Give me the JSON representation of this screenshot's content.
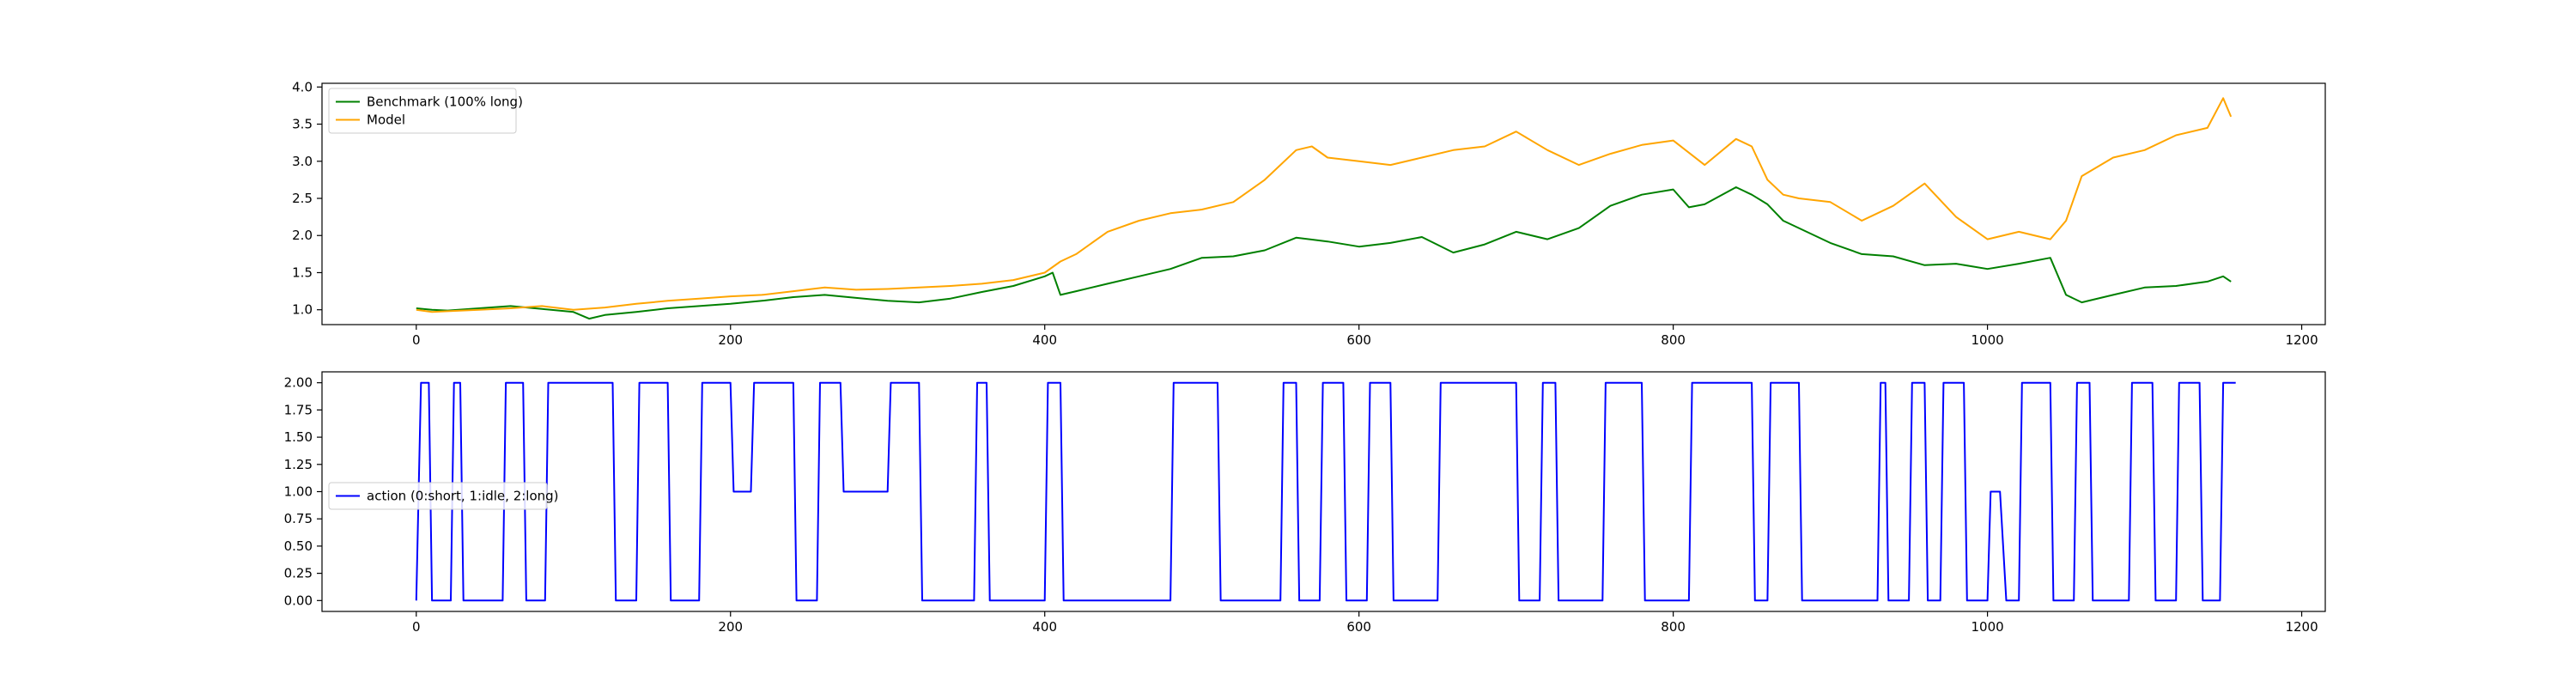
{
  "chart_data": [
    {
      "type": "line",
      "title": "",
      "xlabel": "",
      "ylabel": "",
      "xlim": [
        -60,
        1215
      ],
      "ylim": [
        0.8,
        4.05
      ],
      "xticks": [
        0,
        200,
        400,
        600,
        800,
        1000,
        1200
      ],
      "yticks": [
        1.0,
        1.5,
        2.0,
        2.5,
        3.0,
        3.5,
        4.0
      ],
      "x_tick_labels": [
        "0",
        "200",
        "400",
        "600",
        "800",
        "1000",
        "1200"
      ],
      "y_tick_labels": [
        "1.0",
        "1.5",
        "2.0",
        "2.5",
        "3.0",
        "3.5",
        "4.0"
      ],
      "grid": false,
      "legend_position": "upper-left",
      "series": [
        {
          "name": "Benchmark (100% long)",
          "color": "#008000",
          "x": [
            0,
            10,
            20,
            40,
            60,
            80,
            100,
            110,
            120,
            140,
            160,
            180,
            200,
            220,
            240,
            260,
            280,
            300,
            320,
            340,
            360,
            380,
            400,
            405,
            410,
            420,
            440,
            460,
            480,
            500,
            520,
            540,
            560,
            580,
            600,
            620,
            640,
            660,
            680,
            700,
            720,
            740,
            760,
            780,
            800,
            810,
            820,
            840,
            850,
            860,
            870,
            880,
            900,
            920,
            940,
            960,
            980,
            1000,
            1020,
            1040,
            1050,
            1060,
            1080,
            1100,
            1120,
            1140,
            1150,
            1155
          ],
          "y": [
            1.02,
            1.0,
            0.99,
            1.02,
            1.05,
            1.01,
            0.97,
            0.88,
            0.93,
            0.97,
            1.02,
            1.05,
            1.08,
            1.12,
            1.17,
            1.2,
            1.16,
            1.12,
            1.1,
            1.15,
            1.24,
            1.32,
            1.45,
            1.5,
            1.2,
            1.25,
            1.35,
            1.45,
            1.55,
            1.7,
            1.72,
            1.8,
            1.97,
            1.92,
            1.85,
            1.9,
            1.98,
            1.77,
            1.88,
            2.05,
            1.95,
            2.1,
            2.4,
            2.55,
            2.62,
            2.38,
            2.42,
            2.65,
            2.55,
            2.42,
            2.2,
            2.1,
            1.9,
            1.75,
            1.72,
            1.6,
            1.62,
            1.55,
            1.62,
            1.7,
            1.2,
            1.1,
            1.2,
            1.3,
            1.32,
            1.38,
            1.45,
            1.38
          ]
        },
        {
          "name": "Model",
          "color": "#FFA500",
          "x": [
            0,
            10,
            20,
            40,
            60,
            80,
            100,
            120,
            140,
            160,
            180,
            200,
            220,
            240,
            260,
            280,
            300,
            320,
            340,
            360,
            380,
            400,
            410,
            420,
            440,
            460,
            480,
            500,
            520,
            540,
            560,
            570,
            580,
            600,
            620,
            640,
            660,
            680,
            700,
            720,
            740,
            760,
            780,
            800,
            820,
            840,
            850,
            860,
            870,
            880,
            900,
            920,
            940,
            960,
            980,
            1000,
            1020,
            1040,
            1050,
            1060,
            1080,
            1100,
            1120,
            1140,
            1150,
            1155
          ],
          "y": [
            1.0,
            0.97,
            0.98,
            1.0,
            1.02,
            1.05,
            1.0,
            1.03,
            1.08,
            1.12,
            1.15,
            1.18,
            1.2,
            1.25,
            1.3,
            1.27,
            1.28,
            1.3,
            1.32,
            1.35,
            1.4,
            1.5,
            1.65,
            1.75,
            2.05,
            2.2,
            2.3,
            2.35,
            2.45,
            2.75,
            3.15,
            3.2,
            3.05,
            3.0,
            2.95,
            3.05,
            3.15,
            3.2,
            3.4,
            3.15,
            2.95,
            3.1,
            3.22,
            3.28,
            2.95,
            3.3,
            3.2,
            2.75,
            2.55,
            2.5,
            2.45,
            2.2,
            2.4,
            2.7,
            2.25,
            1.95,
            2.05,
            1.95,
            2.2,
            2.8,
            3.05,
            3.15,
            3.35,
            3.45,
            3.85,
            3.6
          ]
        }
      ]
    },
    {
      "type": "line",
      "title": "",
      "xlabel": "",
      "ylabel": "",
      "xlim": [
        -60,
        1215
      ],
      "ylim": [
        -0.1,
        2.1
      ],
      "xticks": [
        0,
        200,
        400,
        600,
        800,
        1000,
        1200
      ],
      "yticks": [
        0.0,
        0.25,
        0.5,
        0.75,
        1.0,
        1.25,
        1.5,
        1.75,
        2.0
      ],
      "x_tick_labels": [
        "0",
        "200",
        "400",
        "600",
        "800",
        "1000",
        "1200"
      ],
      "y_tick_labels": [
        "0.00",
        "0.25",
        "0.50",
        "0.75",
        "1.00",
        "1.25",
        "1.50",
        "1.75",
        "2.00"
      ],
      "grid": false,
      "legend_position": "center-left",
      "series": [
        {
          "name": "action (0:short, 1:idle, 2:long)",
          "color": "#0000FF",
          "x": [
            0,
            3,
            8,
            10,
            22,
            24,
            28,
            30,
            55,
            57,
            68,
            70,
            82,
            84,
            125,
            127,
            140,
            142,
            160,
            162,
            180,
            182,
            200,
            202,
            213,
            215,
            240,
            242,
            255,
            257,
            270,
            272,
            300,
            302,
            320,
            322,
            355,
            357,
            363,
            365,
            400,
            402,
            410,
            412,
            480,
            482,
            510,
            512,
            550,
            552,
            560,
            562,
            575,
            577,
            590,
            592,
            605,
            607,
            620,
            622,
            650,
            652,
            700,
            702,
            715,
            717,
            725,
            727,
            755,
            757,
            780,
            782,
            810,
            812,
            850,
            852,
            860,
            862,
            880,
            882,
            930,
            932,
            935,
            937,
            950,
            952,
            960,
            962,
            970,
            972,
            985,
            987,
            1000,
            1002,
            1008,
            1012,
            1020,
            1022,
            1040,
            1042,
            1055,
            1057,
            1065,
            1067,
            1090,
            1092,
            1105,
            1107,
            1120,
            1122,
            1135,
            1137,
            1148,
            1150,
            1158
          ],
          "y": [
            0,
            2,
            2,
            0,
            0,
            2,
            2,
            0,
            0,
            2,
            2,
            0,
            0,
            2,
            2,
            0,
            0,
            2,
            2,
            0,
            0,
            2,
            2,
            1,
            1,
            2,
            2,
            0,
            0,
            2,
            2,
            1,
            1,
            2,
            2,
            0,
            0,
            2,
            2,
            0,
            0,
            2,
            2,
            0,
            0,
            2,
            2,
            0,
            0,
            2,
            2,
            0,
            0,
            2,
            2,
            0,
            0,
            2,
            2,
            0,
            0,
            2,
            2,
            0,
            0,
            2,
            2,
            0,
            0,
            2,
            2,
            0,
            0,
            2,
            2,
            0,
            0,
            2,
            2,
            0,
            0,
            2,
            2,
            0,
            0,
            2,
            2,
            0,
            0,
            2,
            2,
            0,
            0,
            1,
            1,
            0,
            0,
            2,
            2,
            0,
            0,
            2,
            2,
            0,
            0,
            2,
            2,
            0,
            0,
            2,
            2,
            0,
            0,
            2,
            2
          ]
        }
      ]
    }
  ]
}
